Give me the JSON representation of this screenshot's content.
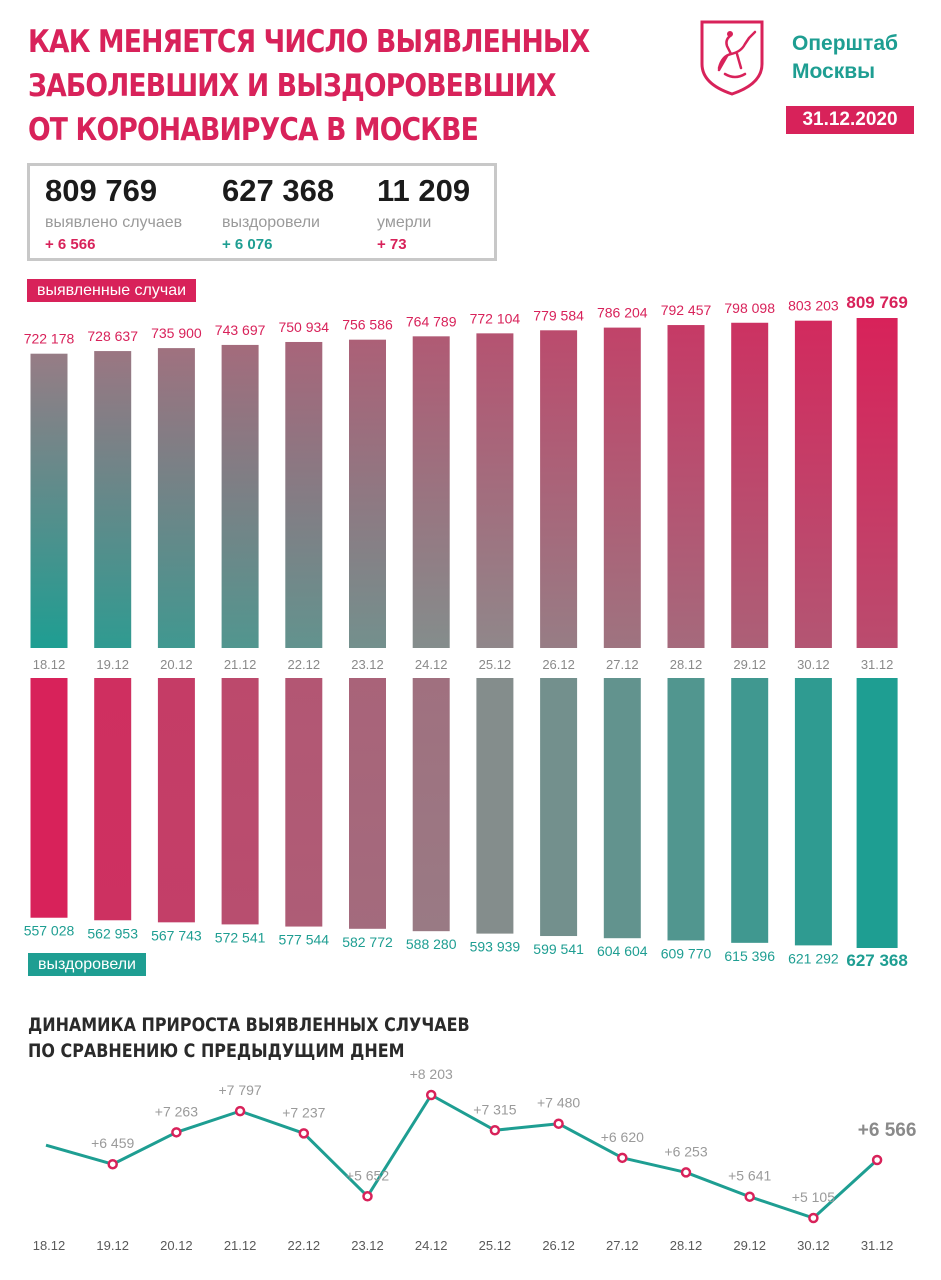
{
  "header": {
    "title_lines": [
      "КАК МЕНЯЕТСЯ ЧИСЛО ВЫЯВЛЕННЫХ",
      "ЗАБОЛЕВШИХ И ВЫЗДОРОВЕВШИХ",
      "ОТ КОРОНАВИРУСА В МОСКВЕ"
    ],
    "org_lines": [
      "Оперштаб",
      "Москвы"
    ],
    "date": "31.12.2020",
    "logo_icon": "moscow-coat-of-arms-icon"
  },
  "summary": {
    "cases": {
      "value": "809 769",
      "label": "выявлено случаев",
      "delta": "+ 6 566"
    },
    "recovered": {
      "value": "627 368",
      "label": "выздоровели",
      "delta": "+ 6 076"
    },
    "deaths": {
      "value": "11 209",
      "label": "умерли",
      "delta": "+ 73"
    }
  },
  "colors": {
    "pink": "#d8225a",
    "teal": "#1e9e92",
    "grey_text": "#9a9a9a",
    "dark_text": "#2a2a2a"
  },
  "chart_data": [
    {
      "type": "bar",
      "legend": "выявленные случаи",
      "categories": [
        "18.12",
        "19.12",
        "20.12",
        "21.12",
        "22.12",
        "23.12",
        "24.12",
        "25.12",
        "26.12",
        "27.12",
        "28.12",
        "29.12",
        "30.12",
        "31.12"
      ],
      "values": [
        722178,
        728637,
        735900,
        743697,
        750934,
        756586,
        764789,
        772104,
        779584,
        786204,
        792457,
        798098,
        803203,
        809769
      ],
      "value_labels": [
        "722 178",
        "728 637",
        "735 900",
        "743 697",
        "750 934",
        "756 586",
        "764 789",
        "772 104",
        "779 584",
        "786 204",
        "792 457",
        "798 098",
        "803 203",
        "809 769"
      ]
    },
    {
      "type": "bar",
      "legend": "выздоровели",
      "orientation": "hanging",
      "categories": [
        "18.12",
        "19.12",
        "20.12",
        "21.12",
        "22.12",
        "23.12",
        "24.12",
        "25.12",
        "26.12",
        "27.12",
        "28.12",
        "29.12",
        "30.12",
        "31.12"
      ],
      "values": [
        557028,
        562953,
        567743,
        572541,
        577544,
        582772,
        588280,
        593939,
        599541,
        604604,
        609770,
        615396,
        621292,
        627368
      ],
      "value_labels": [
        "557 028",
        "562 953",
        "567 743",
        "572 541",
        "577 544",
        "582 772",
        "588 280",
        "593 939",
        "599 541",
        "604 604",
        "609 770",
        "615 396",
        "621 292",
        "627 368"
      ]
    },
    {
      "type": "line",
      "title_lines": [
        "ДИНАМИКА ПРИРОСТА ВЫЯВЛЕННЫХ СЛУЧАЕВ",
        "ПО СРАВНЕНИЮ С ПРЕДЫДУЩИМ ДНЕМ"
      ],
      "categories": [
        "18.12",
        "19.12",
        "20.12",
        "21.12",
        "22.12",
        "23.12",
        "24.12",
        "25.12",
        "26.12",
        "27.12",
        "28.12",
        "29.12",
        "30.12",
        "31.12"
      ],
      "values": [
        null,
        6459,
        7263,
        7797,
        7237,
        5652,
        8203,
        7315,
        7480,
        6620,
        6253,
        5641,
        5105,
        6566
      ],
      "value_labels": [
        "",
        "+6 459",
        "+7 263",
        "+7 797",
        "+7 237",
        "+5 652",
        "+8 203",
        "+7 315",
        "+7 480",
        "+6 620",
        "+6 253",
        "+5 641",
        "+5 105",
        "+6 566"
      ]
    }
  ]
}
